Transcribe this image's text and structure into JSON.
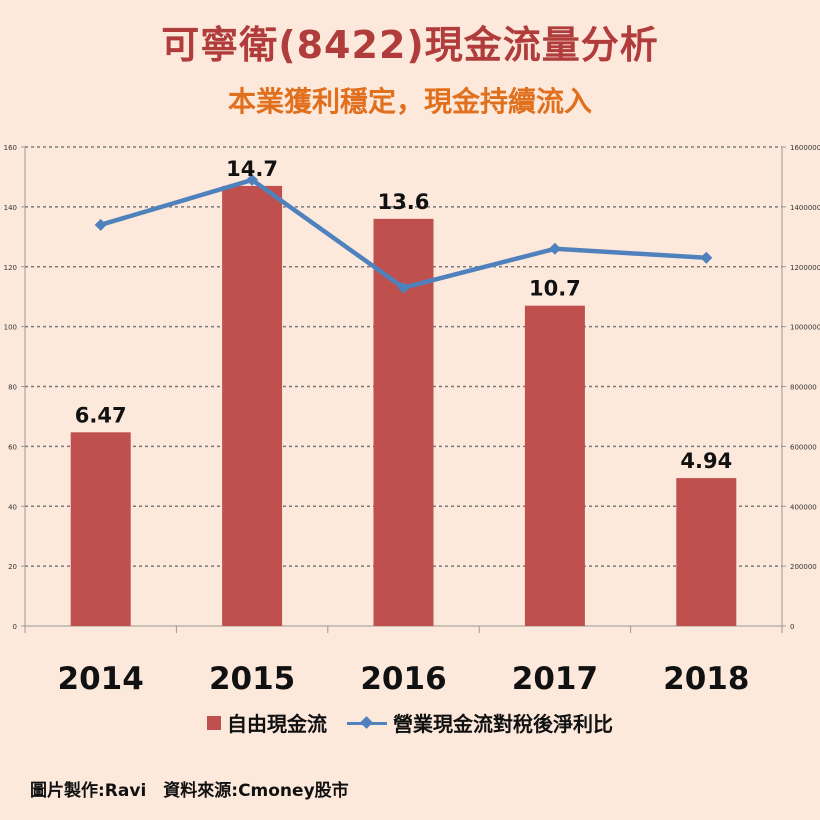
{
  "header": {
    "title": "可寧衛(8422)現金流量分析",
    "subtitle": "本業獲利穩定，現金持續流入"
  },
  "chart_data": {
    "type": "bar",
    "categories": [
      "2014",
      "2015",
      "2016",
      "2017",
      "2018"
    ],
    "series": [
      {
        "name": "自由現金流",
        "type": "bar",
        "axis": "left",
        "values": [
          64.7,
          147,
          136,
          107,
          49.4
        ],
        "labels": [
          "6.47",
          "14.7",
          "13.6",
          "10.7",
          "4.94"
        ],
        "color": "#c0504d"
      },
      {
        "name": "營業現金流對稅後淨利比",
        "type": "line",
        "axis": "right",
        "values": [
          1340000,
          1490000,
          1130000,
          1260000,
          1230000
        ],
        "color": "#4f81bd"
      }
    ],
    "y_left": {
      "min": 0,
      "max": 160,
      "ticks": [
        "0",
        "20",
        "40",
        "60",
        "80",
        "100",
        "120",
        "140",
        "160"
      ]
    },
    "y_right": {
      "min": 0,
      "max": 1600000,
      "ticks": [
        "0",
        "200000",
        "400000",
        "600000",
        "800000",
        "1000000",
        "1200000",
        "1400000",
        "1600000"
      ]
    },
    "grid": true,
    "legend_position": "bottom"
  },
  "footer": {
    "credit": "圖片製作:Ravi　資料來源:Cmoney股市"
  }
}
